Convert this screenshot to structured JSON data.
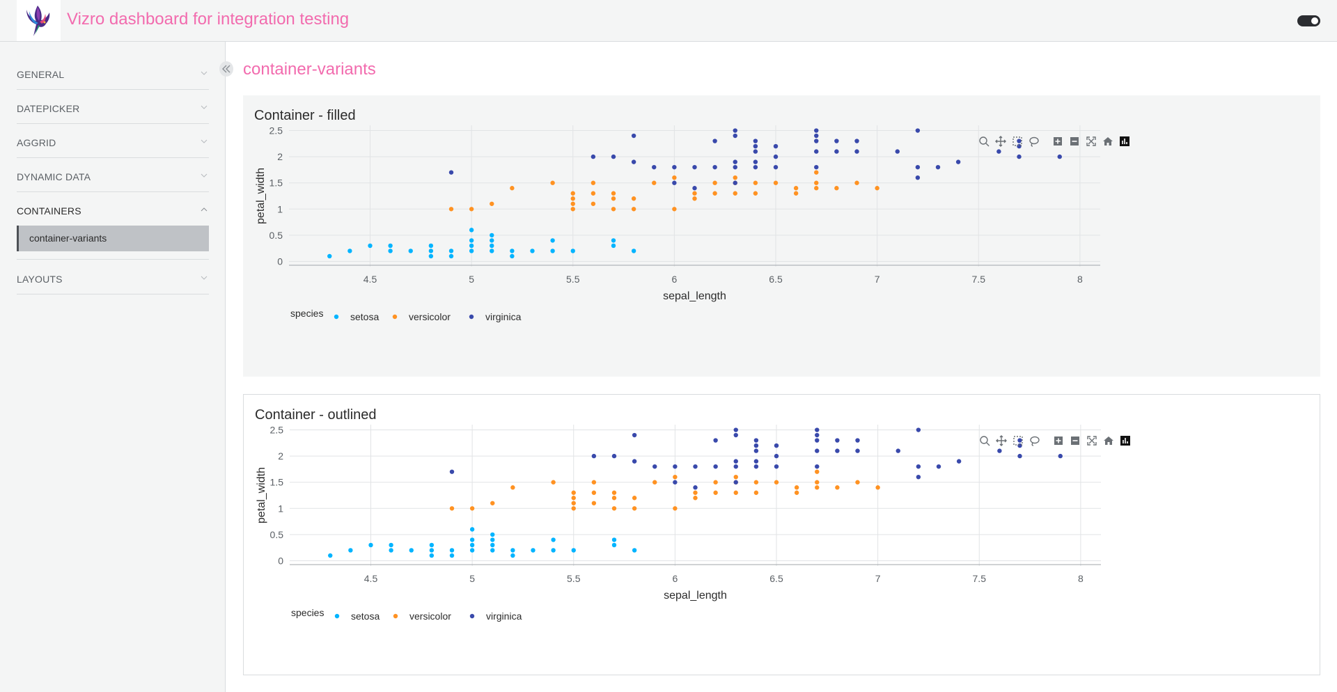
{
  "header": {
    "title": "Vizro dashboard for integration testing",
    "logo_icon": "hummingbird-logo-icon",
    "toggle_icon": "theme-toggle-icon"
  },
  "sidebar": {
    "collapse_icon": "double-chevron-left-icon",
    "items": [
      {
        "label": "GENERAL",
        "expanded": false
      },
      {
        "label": "DATEPICKER",
        "expanded": false
      },
      {
        "label": "AGGRID",
        "expanded": false
      },
      {
        "label": "DYNAMIC DATA",
        "expanded": false
      },
      {
        "label": "CONTAINERS",
        "expanded": true,
        "pages": [
          "container-variants"
        ]
      },
      {
        "label": "LAYOUTS",
        "expanded": false
      }
    ]
  },
  "main": {
    "page_title": "container-variants",
    "cards": [
      {
        "title": "Container - filled",
        "variant": "filled"
      },
      {
        "title": "Container - outlined",
        "variant": "outlined"
      }
    ]
  },
  "modebar_icons": [
    "zoom-icon",
    "pan-icon",
    "box-select-icon",
    "lasso-icon",
    "zoom-in-icon",
    "zoom-out-icon",
    "autoscale-icon",
    "reset-axes-icon",
    "plotly-logo-icon"
  ],
  "colors": {
    "accent": "#f26bae",
    "setosa": "#00b4ff",
    "versicolor": "#ff9222",
    "virginica": "#3949ab"
  },
  "chart_data": {
    "type": "scatter",
    "xlabel": "sepal_length",
    "ylabel": "petal_width",
    "xlim": [
      4.1,
      8.1
    ],
    "ylim": [
      -0.1,
      2.6
    ],
    "xticks": [
      4.5,
      5,
      5.5,
      6,
      6.5,
      7,
      7.5,
      8
    ],
    "yticks": [
      0,
      0.5,
      1,
      1.5,
      2,
      2.5
    ],
    "xtick_labels": [
      "4.5",
      "5",
      "5.5",
      "6",
      "6.5",
      "7",
      "7.5",
      "8"
    ],
    "ytick_labels": [
      "0",
      "0.5",
      "1",
      "1.5",
      "2",
      "2.5"
    ],
    "grid": true,
    "legend_title": "species",
    "legend_position": "bottom-left",
    "series": [
      {
        "name": "setosa",
        "points": [
          [
            4.3,
            0.1
          ],
          [
            4.4,
            0.2
          ],
          [
            4.5,
            0.3
          ],
          [
            4.6,
            0.2
          ],
          [
            4.6,
            0.3
          ],
          [
            4.7,
            0.2
          ],
          [
            4.8,
            0.1
          ],
          [
            4.8,
            0.2
          ],
          [
            4.8,
            0.3
          ],
          [
            4.9,
            0.1
          ],
          [
            4.9,
            0.2
          ],
          [
            5.0,
            0.2
          ],
          [
            5.0,
            0.3
          ],
          [
            5.0,
            0.4
          ],
          [
            5.0,
            0.6
          ],
          [
            5.1,
            0.2
          ],
          [
            5.1,
            0.3
          ],
          [
            5.1,
            0.4
          ],
          [
            5.1,
            0.5
          ],
          [
            5.2,
            0.1
          ],
          [
            5.2,
            0.2
          ],
          [
            5.3,
            0.2
          ],
          [
            5.4,
            0.2
          ],
          [
            5.4,
            0.4
          ],
          [
            5.5,
            0.2
          ],
          [
            5.7,
            0.3
          ],
          [
            5.7,
            0.4
          ],
          [
            5.8,
            0.2
          ]
        ]
      },
      {
        "name": "versicolor",
        "points": [
          [
            4.9,
            1.0
          ],
          [
            5.0,
            1.0
          ],
          [
            5.1,
            1.1
          ],
          [
            5.2,
            1.4
          ],
          [
            5.4,
            1.5
          ],
          [
            5.5,
            1.0
          ],
          [
            5.5,
            1.1
          ],
          [
            5.5,
            1.2
          ],
          [
            5.5,
            1.3
          ],
          [
            5.6,
            1.1
          ],
          [
            5.6,
            1.3
          ],
          [
            5.6,
            1.5
          ],
          [
            5.7,
            1.0
          ],
          [
            5.7,
            1.2
          ],
          [
            5.7,
            1.3
          ],
          [
            5.8,
            1.0
          ],
          [
            5.8,
            1.2
          ],
          [
            5.9,
            1.5
          ],
          [
            6.0,
            1.0
          ],
          [
            6.0,
            1.6
          ],
          [
            6.1,
            1.2
          ],
          [
            6.1,
            1.3
          ],
          [
            6.2,
            1.3
          ],
          [
            6.2,
            1.5
          ],
          [
            6.3,
            1.3
          ],
          [
            6.3,
            1.5
          ],
          [
            6.3,
            1.6
          ],
          [
            6.4,
            1.3
          ],
          [
            6.4,
            1.5
          ],
          [
            6.5,
            1.5
          ],
          [
            6.6,
            1.3
          ],
          [
            6.6,
            1.4
          ],
          [
            6.7,
            1.4
          ],
          [
            6.7,
            1.5
          ],
          [
            6.7,
            1.7
          ],
          [
            6.8,
            1.4
          ],
          [
            6.9,
            1.5
          ],
          [
            7.0,
            1.4
          ]
        ]
      },
      {
        "name": "virginica",
        "points": [
          [
            4.9,
            1.7
          ],
          [
            5.6,
            2.0
          ],
          [
            5.7,
            2.0
          ],
          [
            5.8,
            1.9
          ],
          [
            5.8,
            2.4
          ],
          [
            5.9,
            1.8
          ],
          [
            6.0,
            1.5
          ],
          [
            6.0,
            1.8
          ],
          [
            6.1,
            1.4
          ],
          [
            6.1,
            1.8
          ],
          [
            6.2,
            1.8
          ],
          [
            6.2,
            2.3
          ],
          [
            6.3,
            1.5
          ],
          [
            6.3,
            1.8
          ],
          [
            6.3,
            1.9
          ],
          [
            6.3,
            2.4
          ],
          [
            6.3,
            2.5
          ],
          [
            6.4,
            1.8
          ],
          [
            6.4,
            1.9
          ],
          [
            6.4,
            2.1
          ],
          [
            6.4,
            2.2
          ],
          [
            6.4,
            2.3
          ],
          [
            6.5,
            1.8
          ],
          [
            6.5,
            2.0
          ],
          [
            6.5,
            2.2
          ],
          [
            6.7,
            1.8
          ],
          [
            6.7,
            2.1
          ],
          [
            6.7,
            2.3
          ],
          [
            6.7,
            2.4
          ],
          [
            6.7,
            2.5
          ],
          [
            6.8,
            2.1
          ],
          [
            6.8,
            2.3
          ],
          [
            6.9,
            2.1
          ],
          [
            6.9,
            2.3
          ],
          [
            7.1,
            2.1
          ],
          [
            7.2,
            1.6
          ],
          [
            7.2,
            1.8
          ],
          [
            7.2,
            2.5
          ],
          [
            7.3,
            1.8
          ],
          [
            7.4,
            1.9
          ],
          [
            7.6,
            2.1
          ],
          [
            7.7,
            2.0
          ],
          [
            7.7,
            2.2
          ],
          [
            7.7,
            2.3
          ],
          [
            7.9,
            2.0
          ]
        ]
      }
    ]
  }
}
